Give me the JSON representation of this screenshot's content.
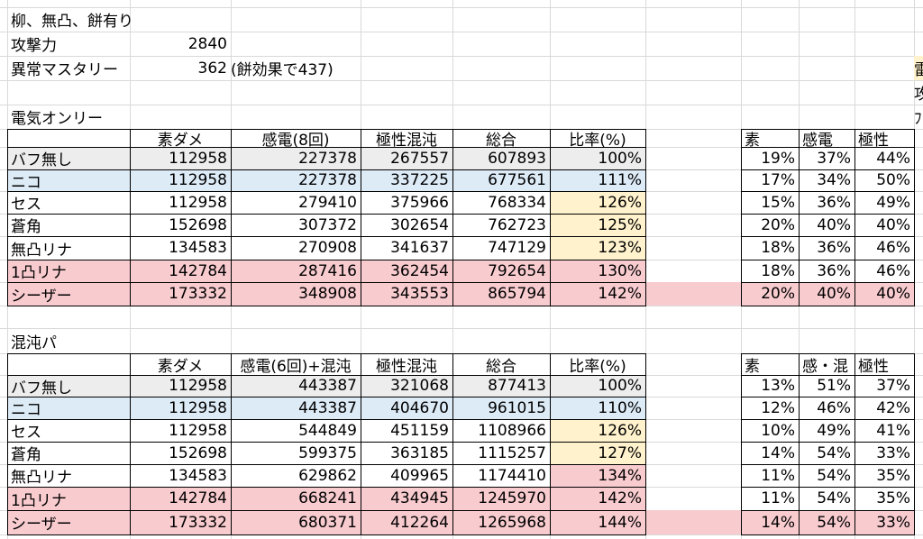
{
  "colors": {
    "gray": "#ededed",
    "blue": "#ddebf7",
    "pink": "#f8cbcf",
    "yellow": "#fff2cc"
  },
  "top": {
    "title": "柳、無凸、餅有り",
    "atk_label": "攻撃力",
    "atk_value": "2840",
    "em_label": "異常マスタリー",
    "em_value": "362",
    "em_note": "(餅効果で437)",
    "edge_r4": "雷",
    "edge_r5": "攻",
    "edge_r6": "ﾌ"
  },
  "sections": [
    {
      "title": "電気オンリー",
      "headers": [
        "素ダメ",
        "感電(8回)",
        "極性混沌",
        "総合",
        "比率(%)"
      ],
      "ratio_headers": [
        "素",
        "感電",
        "極性"
      ],
      "rows": [
        {
          "name": "バフ無し",
          "vals": [
            "112958",
            "227378",
            "267557",
            "607893"
          ],
          "ratio": "100%",
          "parts": [
            "19%",
            "37%",
            "44%"
          ],
          "row_color": "gray",
          "ratio_color": "",
          "parts_color": ""
        },
        {
          "name": "ニコ",
          "vals": [
            "112958",
            "227378",
            "337225",
            "677561"
          ],
          "ratio": "111%",
          "parts": [
            "17%",
            "34%",
            "50%"
          ],
          "row_color": "blue",
          "ratio_color": "",
          "parts_color": ""
        },
        {
          "name": "セス",
          "vals": [
            "112958",
            "279410",
            "375966",
            "768334"
          ],
          "ratio": "126%",
          "parts": [
            "15%",
            "36%",
            "49%"
          ],
          "row_color": "",
          "ratio_color": "yellow",
          "parts_color": ""
        },
        {
          "name": "蒼角",
          "vals": [
            "152698",
            "307372",
            "302654",
            "762723"
          ],
          "ratio": "125%",
          "parts": [
            "20%",
            "40%",
            "40%"
          ],
          "row_color": "",
          "ratio_color": "yellow",
          "parts_color": ""
        },
        {
          "name": "無凸リナ",
          "vals": [
            "134583",
            "270908",
            "341637",
            "747129"
          ],
          "ratio": "123%",
          "parts": [
            "18%",
            "36%",
            "46%"
          ],
          "row_color": "",
          "ratio_color": "yellow",
          "parts_color": ""
        },
        {
          "name": "1凸リナ",
          "vals": [
            "142784",
            "287416",
            "362454",
            "792654"
          ],
          "ratio": "130%",
          "parts": [
            "18%",
            "36%",
            "46%"
          ],
          "row_color": "pink",
          "ratio_color": "",
          "parts_color": ""
        },
        {
          "name": "シーザー",
          "vals": [
            "173332",
            "348908",
            "343553",
            "865794"
          ],
          "ratio": "142%",
          "parts": [
            "20%",
            "40%",
            "40%"
          ],
          "row_color": "pink",
          "ratio_color": "",
          "parts_color": "pink"
        }
      ]
    },
    {
      "title": "混沌パ",
      "headers": [
        "素ダメ",
        "感電(6回)+混沌",
        "極性混沌",
        "総合",
        "比率(%)"
      ],
      "ratio_headers": [
        "素",
        "感・混",
        "極性"
      ],
      "rows": [
        {
          "name": "バフ無し",
          "vals": [
            "112958",
            "443387",
            "321068",
            "877413"
          ],
          "ratio": "100%",
          "parts": [
            "13%",
            "51%",
            "37%"
          ],
          "row_color": "gray",
          "ratio_color": "",
          "parts_color": ""
        },
        {
          "name": "ニコ",
          "vals": [
            "112958",
            "443387",
            "404670",
            "961015"
          ],
          "ratio": "110%",
          "parts": [
            "12%",
            "46%",
            "42%"
          ],
          "row_color": "blue",
          "ratio_color": "",
          "parts_color": ""
        },
        {
          "name": "セス",
          "vals": [
            "112958",
            "544849",
            "451159",
            "1108966"
          ],
          "ratio": "126%",
          "parts": [
            "10%",
            "49%",
            "41%"
          ],
          "row_color": "",
          "ratio_color": "yellow",
          "parts_color": ""
        },
        {
          "name": "蒼角",
          "vals": [
            "152698",
            "599375",
            "363185",
            "1115257"
          ],
          "ratio": "127%",
          "parts": [
            "14%",
            "54%",
            "33%"
          ],
          "row_color": "",
          "ratio_color": "yellow",
          "parts_color": ""
        },
        {
          "name": "無凸リナ",
          "vals": [
            "134583",
            "629862",
            "409965",
            "1174410"
          ],
          "ratio": "134%",
          "parts": [
            "11%",
            "54%",
            "35%"
          ],
          "row_color": "",
          "ratio_color": "pink",
          "parts_color": ""
        },
        {
          "name": "1凸リナ",
          "vals": [
            "142784",
            "668241",
            "434945",
            "1245970"
          ],
          "ratio": "142%",
          "parts": [
            "11%",
            "54%",
            "35%"
          ],
          "row_color": "pink",
          "ratio_color": "",
          "parts_color": ""
        },
        {
          "name": "シーザー",
          "vals": [
            "173332",
            "680371",
            "412264",
            "1265968"
          ],
          "ratio": "144%",
          "parts": [
            "14%",
            "54%",
            "33%"
          ],
          "row_color": "pink",
          "ratio_color": "",
          "parts_color": "pink"
        }
      ]
    }
  ]
}
